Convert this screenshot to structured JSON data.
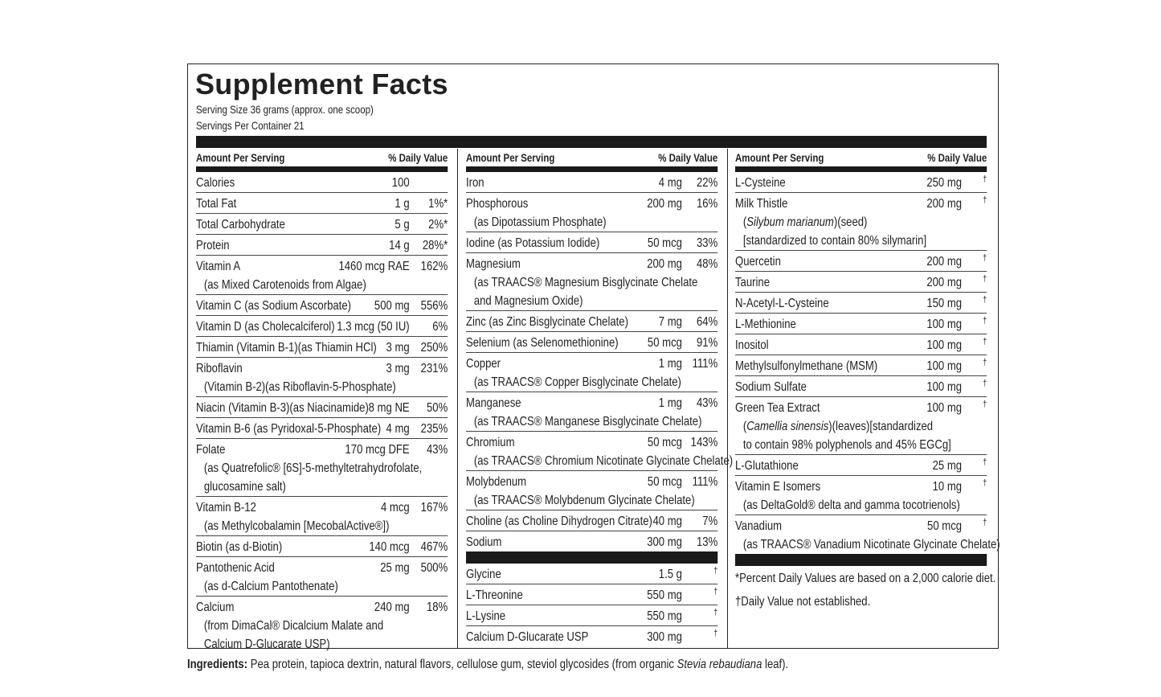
{
  "title": "Supplement Facts",
  "serving_size": "Serving Size 36 grams (approx. one scoop)",
  "servings_per_container": "Servings Per Container 21",
  "columns": [
    {
      "header": {
        "amount": "Amount Per Serving",
        "dv": "% Daily Value"
      },
      "sections": [
        [
          {
            "name": "Calories",
            "amount": "100"
          },
          {
            "name": "Total Fat",
            "amount": "1 g",
            "dv": "1%*"
          },
          {
            "name": "Total Carbohydrate",
            "amount": "5 g",
            "dv": "2%*"
          },
          {
            "name": "Protein",
            "amount": "14 g",
            "dv": "28%*"
          },
          {
            "name": "Vitamin A",
            "amount": "1460 mcg RAE",
            "dv": "162%",
            "sub": [
              "(as Mixed Carotenoids from Algae)"
            ]
          },
          {
            "name": "Vitamin C (as Sodium Ascorbate)",
            "amount": "500 mg",
            "dv": "556%"
          },
          {
            "name": "Vitamin D (as Cholecalciferol)",
            "amount": "1.3 mcg (50 IU)",
            "dv": "6%"
          },
          {
            "name": "Thiamin (Vitamin B-1)(as Thiamin HCl)",
            "amount": "3 mg",
            "dv": "250%"
          },
          {
            "name": "Riboflavin",
            "amount": "3 mg",
            "dv": "231%",
            "sub": [
              "(Vitamin B-2)(as Riboflavin-5-Phosphate)"
            ]
          },
          {
            "name": "Niacin (Vitamin B-3)(as Niacinamide)",
            "amount": "8 mg NE",
            "dv": "50%"
          },
          {
            "name": "Vitamin B-6 (as Pyridoxal-5-Phosphate)",
            "amount": "4 mg",
            "dv": "235%"
          },
          {
            "name": "Folate",
            "amount": "170 mcg DFE",
            "dv": "43%",
            "sub": [
              "(as Quatrefolic® [6S]-5-methyltetrahydrofolate,",
              "glucosamine salt)"
            ]
          },
          {
            "name": "Vitamin B-12",
            "amount": "4 mcg",
            "dv": "167%",
            "sub": [
              "(as Methylcobalamin [MecobalActive®])"
            ]
          },
          {
            "name": "Biotin (as d-Biotin)",
            "amount": "140 mcg",
            "dv": "467%"
          },
          {
            "name": "Pantothenic Acid",
            "amount": "25 mg",
            "dv": "500%",
            "sub": [
              "(as d-Calcium Pantothenate)"
            ]
          },
          {
            "name": "Calcium",
            "amount": "240 mg",
            "dv": "18%",
            "sub": [
              "(from DimaCal® Dicalcium Malate and",
              "Calcium D-Glucarate USP)"
            ]
          }
        ]
      ]
    },
    {
      "header": {
        "amount": "Amount Per Serving",
        "dv": "% Daily Value"
      },
      "sections": [
        [
          {
            "name": "Iron",
            "amount": "4 mg",
            "dv": "22%"
          },
          {
            "name": "Phosphorous",
            "amount": "200 mg",
            "dv": "16%",
            "sub": [
              "(as Dipotassium Phosphate)"
            ]
          },
          {
            "name": "Iodine (as Potassium Iodide)",
            "amount": "50 mcg",
            "dv": "33%"
          },
          {
            "name": "Magnesium",
            "amount": "200 mg",
            "dv": "48%",
            "sub": [
              "(as TRAACS® Magnesium Bisglycinate Chelate",
              "and Magnesium Oxide)"
            ]
          },
          {
            "name": "Zinc (as Zinc Bisglycinate Chelate)",
            "amount": "7 mg",
            "dv": "64%"
          },
          {
            "name": "Selenium (as Selenomethionine)",
            "amount": "50 mcg",
            "dv": "91%"
          },
          {
            "name": "Copper",
            "amount": "1 mg",
            "dv": "111%",
            "sub": [
              "(as TRAACS® Copper Bisglycinate Chelate)"
            ]
          },
          {
            "name": "Manganese",
            "amount": "1 mg",
            "dv": "43%",
            "sub": [
              "(as TRAACS® Manganese Bisglycinate Chelate)"
            ]
          },
          {
            "name": "Chromium",
            "amount": "50 mcg",
            "dv": "143%",
            "sub": [
              "(as TRAACS® Chromium Nicotinate Glycinate Chelate)"
            ]
          },
          {
            "name": "Molybdenum",
            "amount": "50 mcg",
            "dv": "111%",
            "sub": [
              "(as TRAACS® Molybdenum Glycinate Chelate)"
            ]
          },
          {
            "name": "Choline (as Choline Dihydrogen Citrate)",
            "amount": "40 mg",
            "dv": "7%"
          },
          {
            "name": "Sodium",
            "amount": "300 mg",
            "dv": "13%"
          }
        ],
        [
          {
            "name": "Glycine",
            "amount": "1.5 g",
            "dv": "†"
          },
          {
            "name": "L-Threonine",
            "amount": "550 mg",
            "dv": "†"
          },
          {
            "name": "L-Lysine",
            "amount": "550 mg",
            "dv": "†"
          },
          {
            "name": "Calcium D-Glucarate USP",
            "amount": "300 mg",
            "dv": "†"
          }
        ]
      ]
    },
    {
      "header": {
        "amount": "Amount Per Serving",
        "dv": "% Daily Value"
      },
      "sections": [
        [
          {
            "name": "L-Cysteine",
            "amount": "250 mg",
            "dv": "†"
          },
          {
            "name": "Milk Thistle",
            "amount": "200 mg",
            "dv": "†",
            "sub": [
              {
                "pre": "(",
                "em": "Silybum marianum",
                "post": ")(seed)"
              },
              "[standardized to contain 80% silymarin]"
            ]
          },
          {
            "name": "Quercetin",
            "amount": "200 mg",
            "dv": "†"
          },
          {
            "name": "Taurine",
            "amount": "200 mg",
            "dv": "†"
          },
          {
            "name": "N-Acetyl-L-Cysteine",
            "amount": "150 mg",
            "dv": "†"
          },
          {
            "name": "L-Methionine",
            "amount": "100 mg",
            "dv": "†"
          },
          {
            "name": "Inositol",
            "amount": "100 mg",
            "dv": "†"
          },
          {
            "name": "Methylsulfonylmethane (MSM)",
            "amount": "100 mg",
            "dv": "†"
          },
          {
            "name": "Sodium Sulfate",
            "amount": "100 mg",
            "dv": "†"
          },
          {
            "name": "Green Tea Extract",
            "amount": "100 mg",
            "dv": "†",
            "sub": [
              {
                "pre": "(",
                "em": "Camellia sinensis",
                "post": ")(leaves)[standardized"
              },
              "to contain 98% polyphenols and 45% EGCg]"
            ]
          },
          {
            "name": "L-Glutathione",
            "amount": "25 mg",
            "dv": "†"
          },
          {
            "name": "Vitamin E Isomers",
            "amount": "10 mg",
            "dv": "†",
            "sub": [
              "(as DeltaGold® delta and gamma tocotrienols)"
            ]
          },
          {
            "name": "Vanadium",
            "amount": "50 mcg",
            "dv": "†",
            "sub": [
              "(as TRAACS® Vanadium Nicotinate Glycinate Chelate)"
            ]
          }
        ]
      ]
    }
  ],
  "footnotes": [
    "*Percent Daily Values are based on a 2,000 calorie diet.",
    "†Daily Value not established."
  ],
  "ingredients": {
    "label": "Ingredients:",
    "pre": " Pea protein, tapioca dextrin, natural flavors, cellulose gum, steviol glycosides (from organic ",
    "em": "Stevia rebaudiana",
    "post": " leaf)."
  }
}
